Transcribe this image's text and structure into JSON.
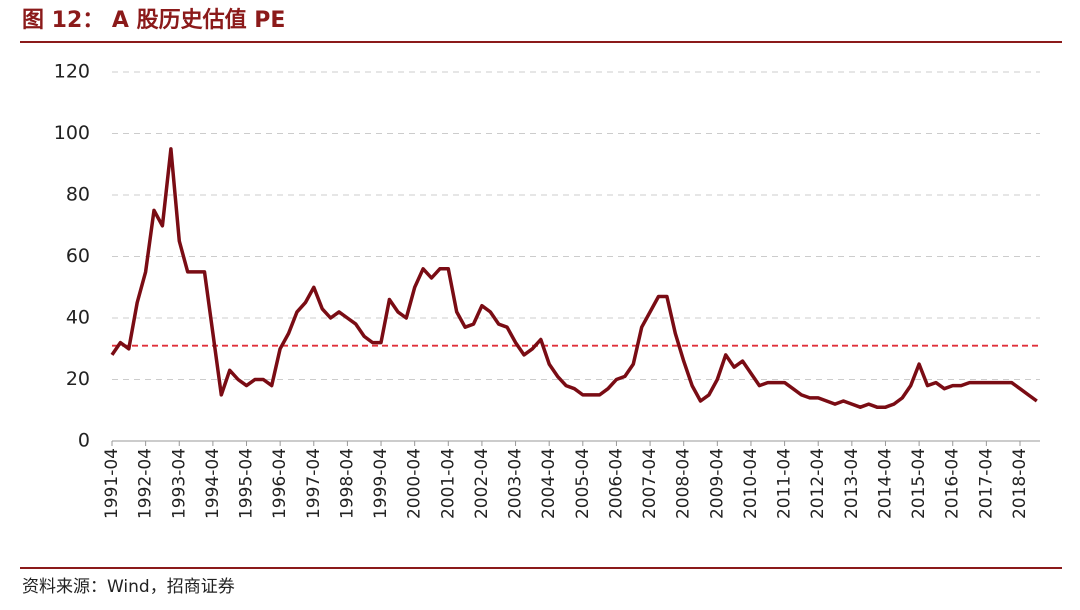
{
  "chart_data": {
    "type": "line",
    "title": "图 12： A 股历史估值 PE",
    "source": "资料来源：Wind，招商证券",
    "categories": [
      "1991-04",
      null,
      null,
      null,
      "1992-04",
      null,
      null,
      null,
      "1993-04",
      null,
      null,
      null,
      "1994-04",
      null,
      null,
      null,
      "1995-04",
      null,
      null,
      null,
      "1996-04",
      null,
      null,
      null,
      "1997-04",
      null,
      null,
      null,
      "1998-04",
      null,
      null,
      null,
      "1999-04",
      null,
      null,
      null,
      "2000-04",
      null,
      null,
      null,
      "2001-04",
      null,
      null,
      null,
      "2002-04",
      null,
      null,
      null,
      "2003-04",
      null,
      null,
      null,
      "2004-04",
      null,
      null,
      null,
      "2005-04",
      null,
      null,
      null,
      "2006-04",
      null,
      null,
      null,
      "2007-04",
      null,
      null,
      null,
      "2008-04",
      null,
      null,
      null,
      "2009-04",
      null,
      null,
      null,
      "2010-04",
      null,
      null,
      null,
      "2011-04",
      null,
      null,
      null,
      "2012-04",
      null,
      null,
      null,
      "2013-04",
      null,
      null,
      null,
      "2014-04",
      null,
      null,
      null,
      "2015-04",
      null,
      null,
      null,
      "2016-04",
      null,
      null,
      null,
      "2017-04",
      null,
      null,
      null,
      "2018-04",
      null,
      null
    ],
    "values": [
      28,
      32,
      30,
      45,
      55,
      75,
      70,
      95,
      65,
      55,
      55,
      55,
      35,
      15,
      23,
      20,
      18,
      20,
      20,
      18,
      30,
      35,
      42,
      45,
      50,
      43,
      40,
      42,
      40,
      38,
      34,
      32,
      32,
      46,
      42,
      40,
      50,
      56,
      53,
      56,
      56,
      42,
      37,
      38,
      44,
      42,
      38,
      37,
      32,
      28,
      30,
      33,
      25,
      21,
      18,
      17,
      15,
      15,
      15,
      17,
      20,
      21,
      25,
      37,
      42,
      47,
      47,
      35,
      26,
      18,
      13,
      15,
      20,
      28,
      24,
      26,
      22,
      18,
      19,
      19,
      19,
      17,
      15,
      14,
      14,
      13,
      12,
      13,
      12,
      11,
      12,
      11,
      11,
      12,
      14,
      18,
      25,
      18,
      19,
      17,
      18,
      18,
      19,
      19,
      19,
      19,
      19,
      19,
      17,
      15,
      13
    ],
    "color": "#7a0c14",
    "hline": {
      "value": 31,
      "color": "#e0303a"
    },
    "ylim": [
      0,
      120
    ],
    "yticks": [
      0,
      20,
      40,
      60,
      80,
      100,
      120
    ],
    "grid": true
  }
}
